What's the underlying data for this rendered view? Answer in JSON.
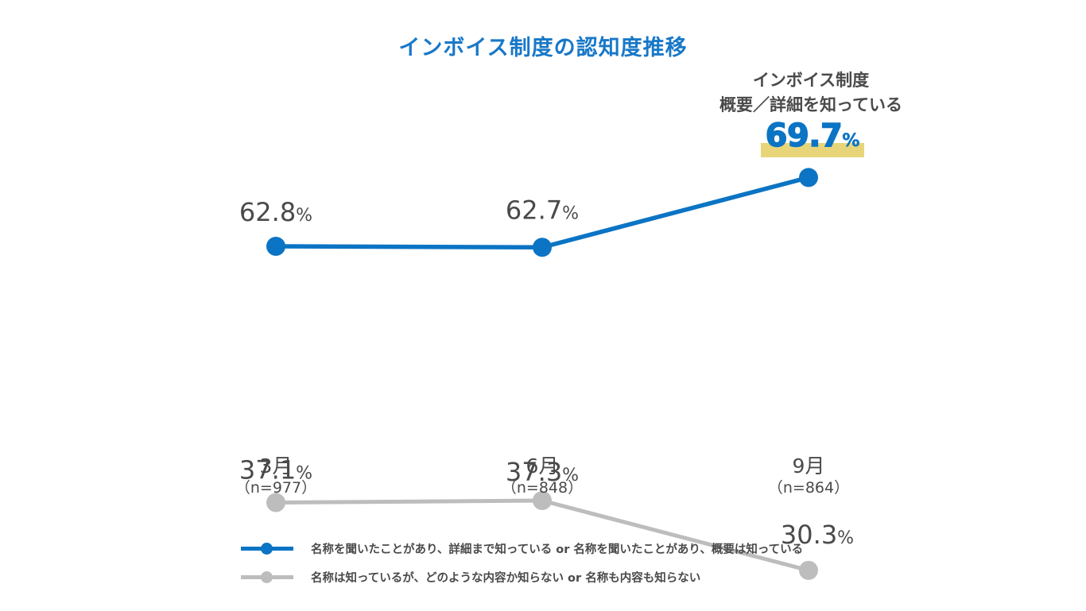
{
  "chart_data": {
    "type": "line",
    "title": "インボイス制度の認知度推移",
    "categories": [
      "3月",
      "6月",
      "9月"
    ],
    "sample_sizes": [
      "（n=977）",
      "（n=848）",
      "（n=864）"
    ],
    "unit": "%",
    "ylim": [
      0,
      100
    ],
    "grid": false,
    "legend_position": "bottom",
    "series": [
      {
        "name": "名称を聞いたことがあり、詳細まで知っている or 名称を聞いたことがあり、概要は知っている",
        "color": "#0b74c4",
        "values": [
          62.8,
          62.7,
          69.7
        ],
        "labels": [
          "62.8",
          "62.7",
          "69.7"
        ]
      },
      {
        "name": "名称は知っているが、どのような内容か知らない or 名称も内容も知らない",
        "color": "#bdbdbd",
        "values": [
          37.1,
          37.3,
          30.3
        ],
        "labels": [
          "37.1",
          "37.3",
          "30.3"
        ]
      }
    ],
    "annotation": {
      "line1": "インボイス制度",
      "line2": "概要／詳細を知っている",
      "value": "69.7",
      "unit": "%",
      "highlight_color": "#e8d57a"
    }
  }
}
